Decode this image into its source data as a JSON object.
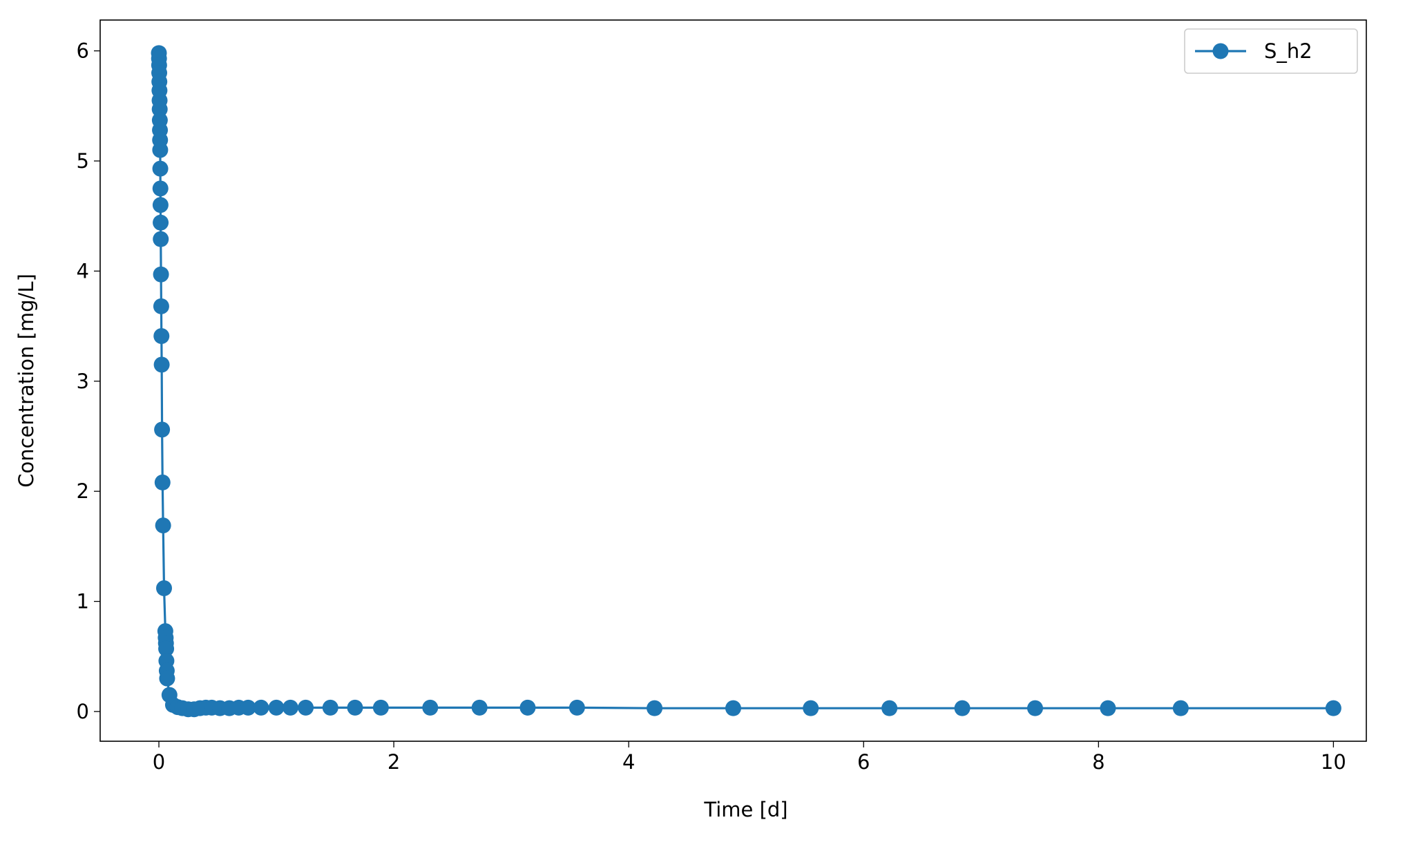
{
  "chart_data": {
    "type": "line",
    "x_label": "Time [d]",
    "y_label": "Concentration [mg/L]",
    "x": [
      0,
      0.001,
      0.002,
      0.003,
      0.004,
      0.005,
      0.006,
      0.007,
      0.008,
      0.009,
      0.01,
      0.011,
      0.012,
      0.013,
      0.014,
      0.015,
      0.016,
      0.018,
      0.02,
      0.022,
      0.024,
      0.027,
      0.031,
      0.036,
      0.044,
      0.055,
      0.058,
      0.06,
      0.062,
      0.064,
      0.067,
      0.07,
      0.09,
      0.12,
      0.16,
      0.2,
      0.25,
      0.3,
      0.35,
      0.4,
      0.45,
      0.52,
      0.6,
      0.68,
      0.76,
      0.87,
      1.0,
      1.12,
      1.25,
      1.46,
      1.67,
      1.89,
      2.31,
      2.73,
      3.14,
      3.56,
      4.22,
      4.89,
      5.55,
      6.22,
      6.84,
      7.46,
      8.08,
      8.7,
      10
    ],
    "series": [
      {
        "name": "S_h2",
        "color": "#1f77b4",
        "values": [
          5.98,
          5.93,
          5.87,
          5.8,
          5.72,
          5.64,
          5.55,
          5.47,
          5.37,
          5.28,
          5.19,
          5.1,
          4.93,
          4.75,
          4.6,
          4.44,
          4.29,
          3.97,
          3.68,
          3.41,
          3.15,
          2.56,
          2.08,
          1.69,
          1.12,
          0.73,
          0.67,
          0.62,
          0.57,
          0.46,
          0.37,
          0.3,
          0.15,
          0.06,
          0.04,
          0.03,
          0.02,
          0.02,
          0.03,
          0.035,
          0.035,
          0.03,
          0.03,
          0.035,
          0.035,
          0.035,
          0.035,
          0.035,
          0.035,
          0.035,
          0.035,
          0.035,
          0.035,
          0.035,
          0.035,
          0.035,
          0.03,
          0.03,
          0.03,
          0.03,
          0.03,
          0.03,
          0.03,
          0.03,
          0.03
        ]
      }
    ],
    "xlim": [
      -0.5,
      10.28
    ],
    "ylim": [
      -0.27,
      6.28
    ],
    "xticks": [
      0,
      2,
      4,
      6,
      8,
      10
    ],
    "yticks": [
      0,
      1,
      2,
      3,
      4,
      5,
      6
    ],
    "legend": "upper right",
    "grid": false
  }
}
